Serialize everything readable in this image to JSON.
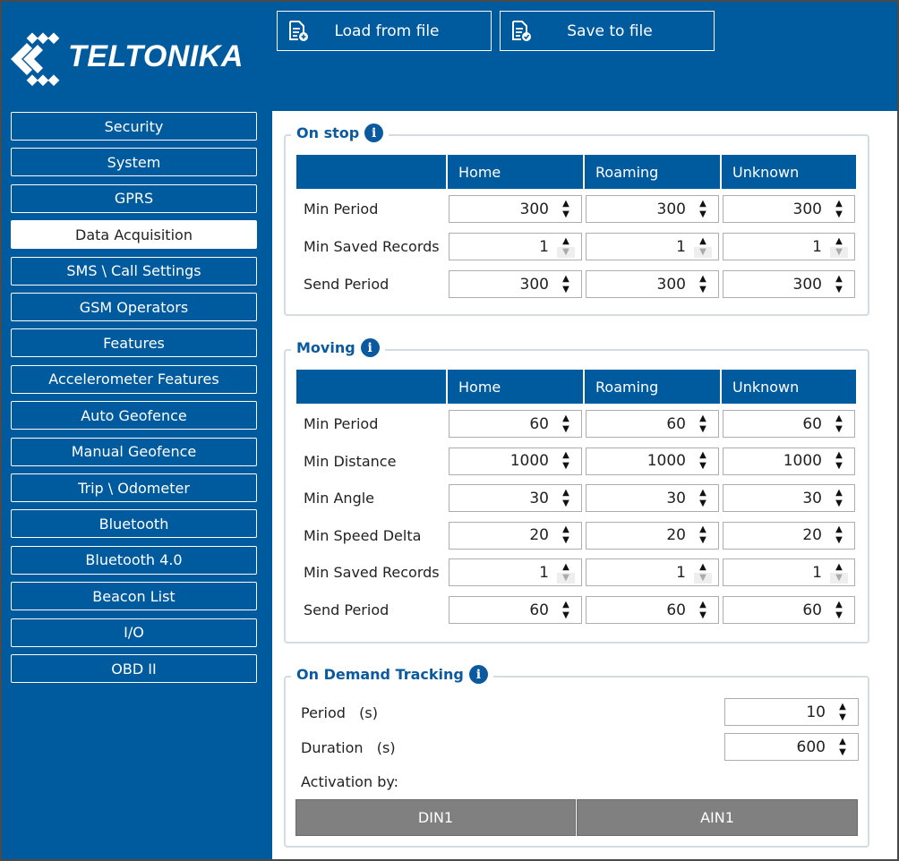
{
  "brand": "TELTONIKA",
  "toolbar": {
    "load": "Load from file",
    "save": "Save to file"
  },
  "sidebar": [
    "Security",
    "System",
    "GPRS",
    "Data Acquisition",
    "SMS \\ Call Settings",
    "GSM Operators",
    "Features",
    "Accelerometer Features",
    "Auto Geofence",
    "Manual Geofence",
    "Trip \\ Odometer",
    "Bluetooth",
    "Bluetooth 4.0",
    "Beacon List",
    "I/O",
    "OBD II"
  ],
  "sidebar_selected": "Data Acquisition",
  "columns": [
    "Home",
    "Roaming",
    "Unknown"
  ],
  "on_stop": {
    "title": "On stop",
    "rows": [
      {
        "label": "Min Period",
        "values": [
          "300",
          "300",
          "300"
        ]
      },
      {
        "label": "Min Saved Records",
        "values": [
          "1",
          "1",
          "1"
        ],
        "min_reached": true
      },
      {
        "label": "Send Period",
        "values": [
          "300",
          "300",
          "300"
        ]
      }
    ]
  },
  "moving": {
    "title": "Moving",
    "rows": [
      {
        "label": "Min Period",
        "values": [
          "60",
          "60",
          "60"
        ]
      },
      {
        "label": "Min Distance",
        "values": [
          "1000",
          "1000",
          "1000"
        ]
      },
      {
        "label": "Min Angle",
        "values": [
          "30",
          "30",
          "30"
        ]
      },
      {
        "label": "Min Speed Delta",
        "values": [
          "20",
          "20",
          "20"
        ]
      },
      {
        "label": "Min Saved Records",
        "values": [
          "1",
          "1",
          "1"
        ],
        "min_reached": true
      },
      {
        "label": "Send Period",
        "values": [
          "60",
          "60",
          "60"
        ]
      }
    ]
  },
  "on_demand": {
    "title": "On Demand Tracking",
    "period_label": "Period",
    "period_unit": "(s)",
    "period": "10",
    "duration_label": "Duration",
    "duration_unit": "(s)",
    "duration": "600",
    "activation_label": "Activation by:",
    "buttons": [
      "DIN1",
      "AIN1"
    ]
  },
  "colors": {
    "brand_blue": "#005a9e",
    "button_gray": "#808080"
  }
}
